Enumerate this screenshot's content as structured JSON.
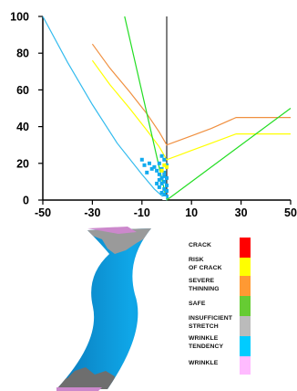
{
  "chart_data": {
    "type": "line",
    "title": "",
    "xlabel": "",
    "ylabel": "",
    "xlim": [
      -50,
      50
    ],
    "ylim": [
      0,
      100
    ],
    "x_ticks": [
      -50,
      -30,
      -10,
      10,
      30,
      50
    ],
    "y_ticks": [
      0,
      20,
      40,
      60,
      80,
      100
    ],
    "grid": false,
    "series": [
      {
        "color": "#f09040",
        "x": [
          -30,
          -23,
          -15,
          -8,
          -3,
          0,
          5,
          10,
          18,
          28,
          50
        ],
        "y": [
          85,
          72,
          59,
          47,
          37,
          30,
          32.5,
          35,
          39,
          45,
          45
        ]
      },
      {
        "color": "#ffff00",
        "x": [
          -30,
          -23,
          -15,
          -8,
          -3,
          0,
          5,
          10,
          18,
          28,
          50
        ],
        "y": [
          76,
          63,
          50,
          38,
          29,
          22,
          24.5,
          27,
          31,
          36,
          36
        ]
      },
      {
        "color": "#22dd22",
        "x": [
          0,
          50
        ],
        "y": [
          0,
          50
        ]
      },
      {
        "color": "#22dd22",
        "x": [
          -17,
          0
        ],
        "y": [
          100,
          0
        ]
      },
      {
        "color": "#33bbee",
        "x": [
          -50,
          -40,
          -30,
          -20,
          -10,
          -5,
          0
        ],
        "y": [
          100,
          75,
          52,
          31,
          14,
          6,
          0
        ]
      }
    ],
    "scatter": {
      "color": "#11aaee",
      "x": [
        -10,
        -9,
        -7,
        -6,
        -5,
        -8,
        -4,
        -3,
        -2,
        -1,
        -2,
        -3,
        -1,
        0,
        -4,
        -2,
        -1,
        0,
        -3,
        -1,
        0,
        -2,
        -1,
        0,
        -3,
        -1,
        -2,
        0
      ],
      "y": [
        22,
        19,
        20,
        17,
        18,
        15,
        16,
        14,
        17,
        15,
        12,
        11,
        13,
        12,
        9,
        9,
        10,
        8,
        7,
        6,
        5,
        4,
        3,
        2,
        20,
        22,
        24,
        19
      ]
    },
    "extra_points": [
      {
        "color": "#ffff00",
        "x": [
          -1,
          0,
          -2
        ],
        "y": [
          19,
          18,
          16
        ]
      },
      {
        "color": "#ffffff",
        "x": [
          -1
        ],
        "y": [
          1
        ]
      }
    ]
  },
  "legend": {
    "items": [
      {
        "label": "CRACK",
        "color": "#ff0000"
      },
      {
        "label": "RISK\nOF CRACK",
        "color": "#ffff00"
      },
      {
        "label": "SEVERE\nTHINNING",
        "color": "#ff9933"
      },
      {
        "label": "SAFE",
        "color": "#66cc33"
      },
      {
        "label": "INSUFFICIENT\nSTRETCH",
        "color": "#bbbbbb"
      },
      {
        "label": "WRINKLE\nTENDENCY",
        "color": "#00ccff"
      },
      {
        "label": "WRINKLE",
        "color": "#ffbbff"
      }
    ]
  }
}
